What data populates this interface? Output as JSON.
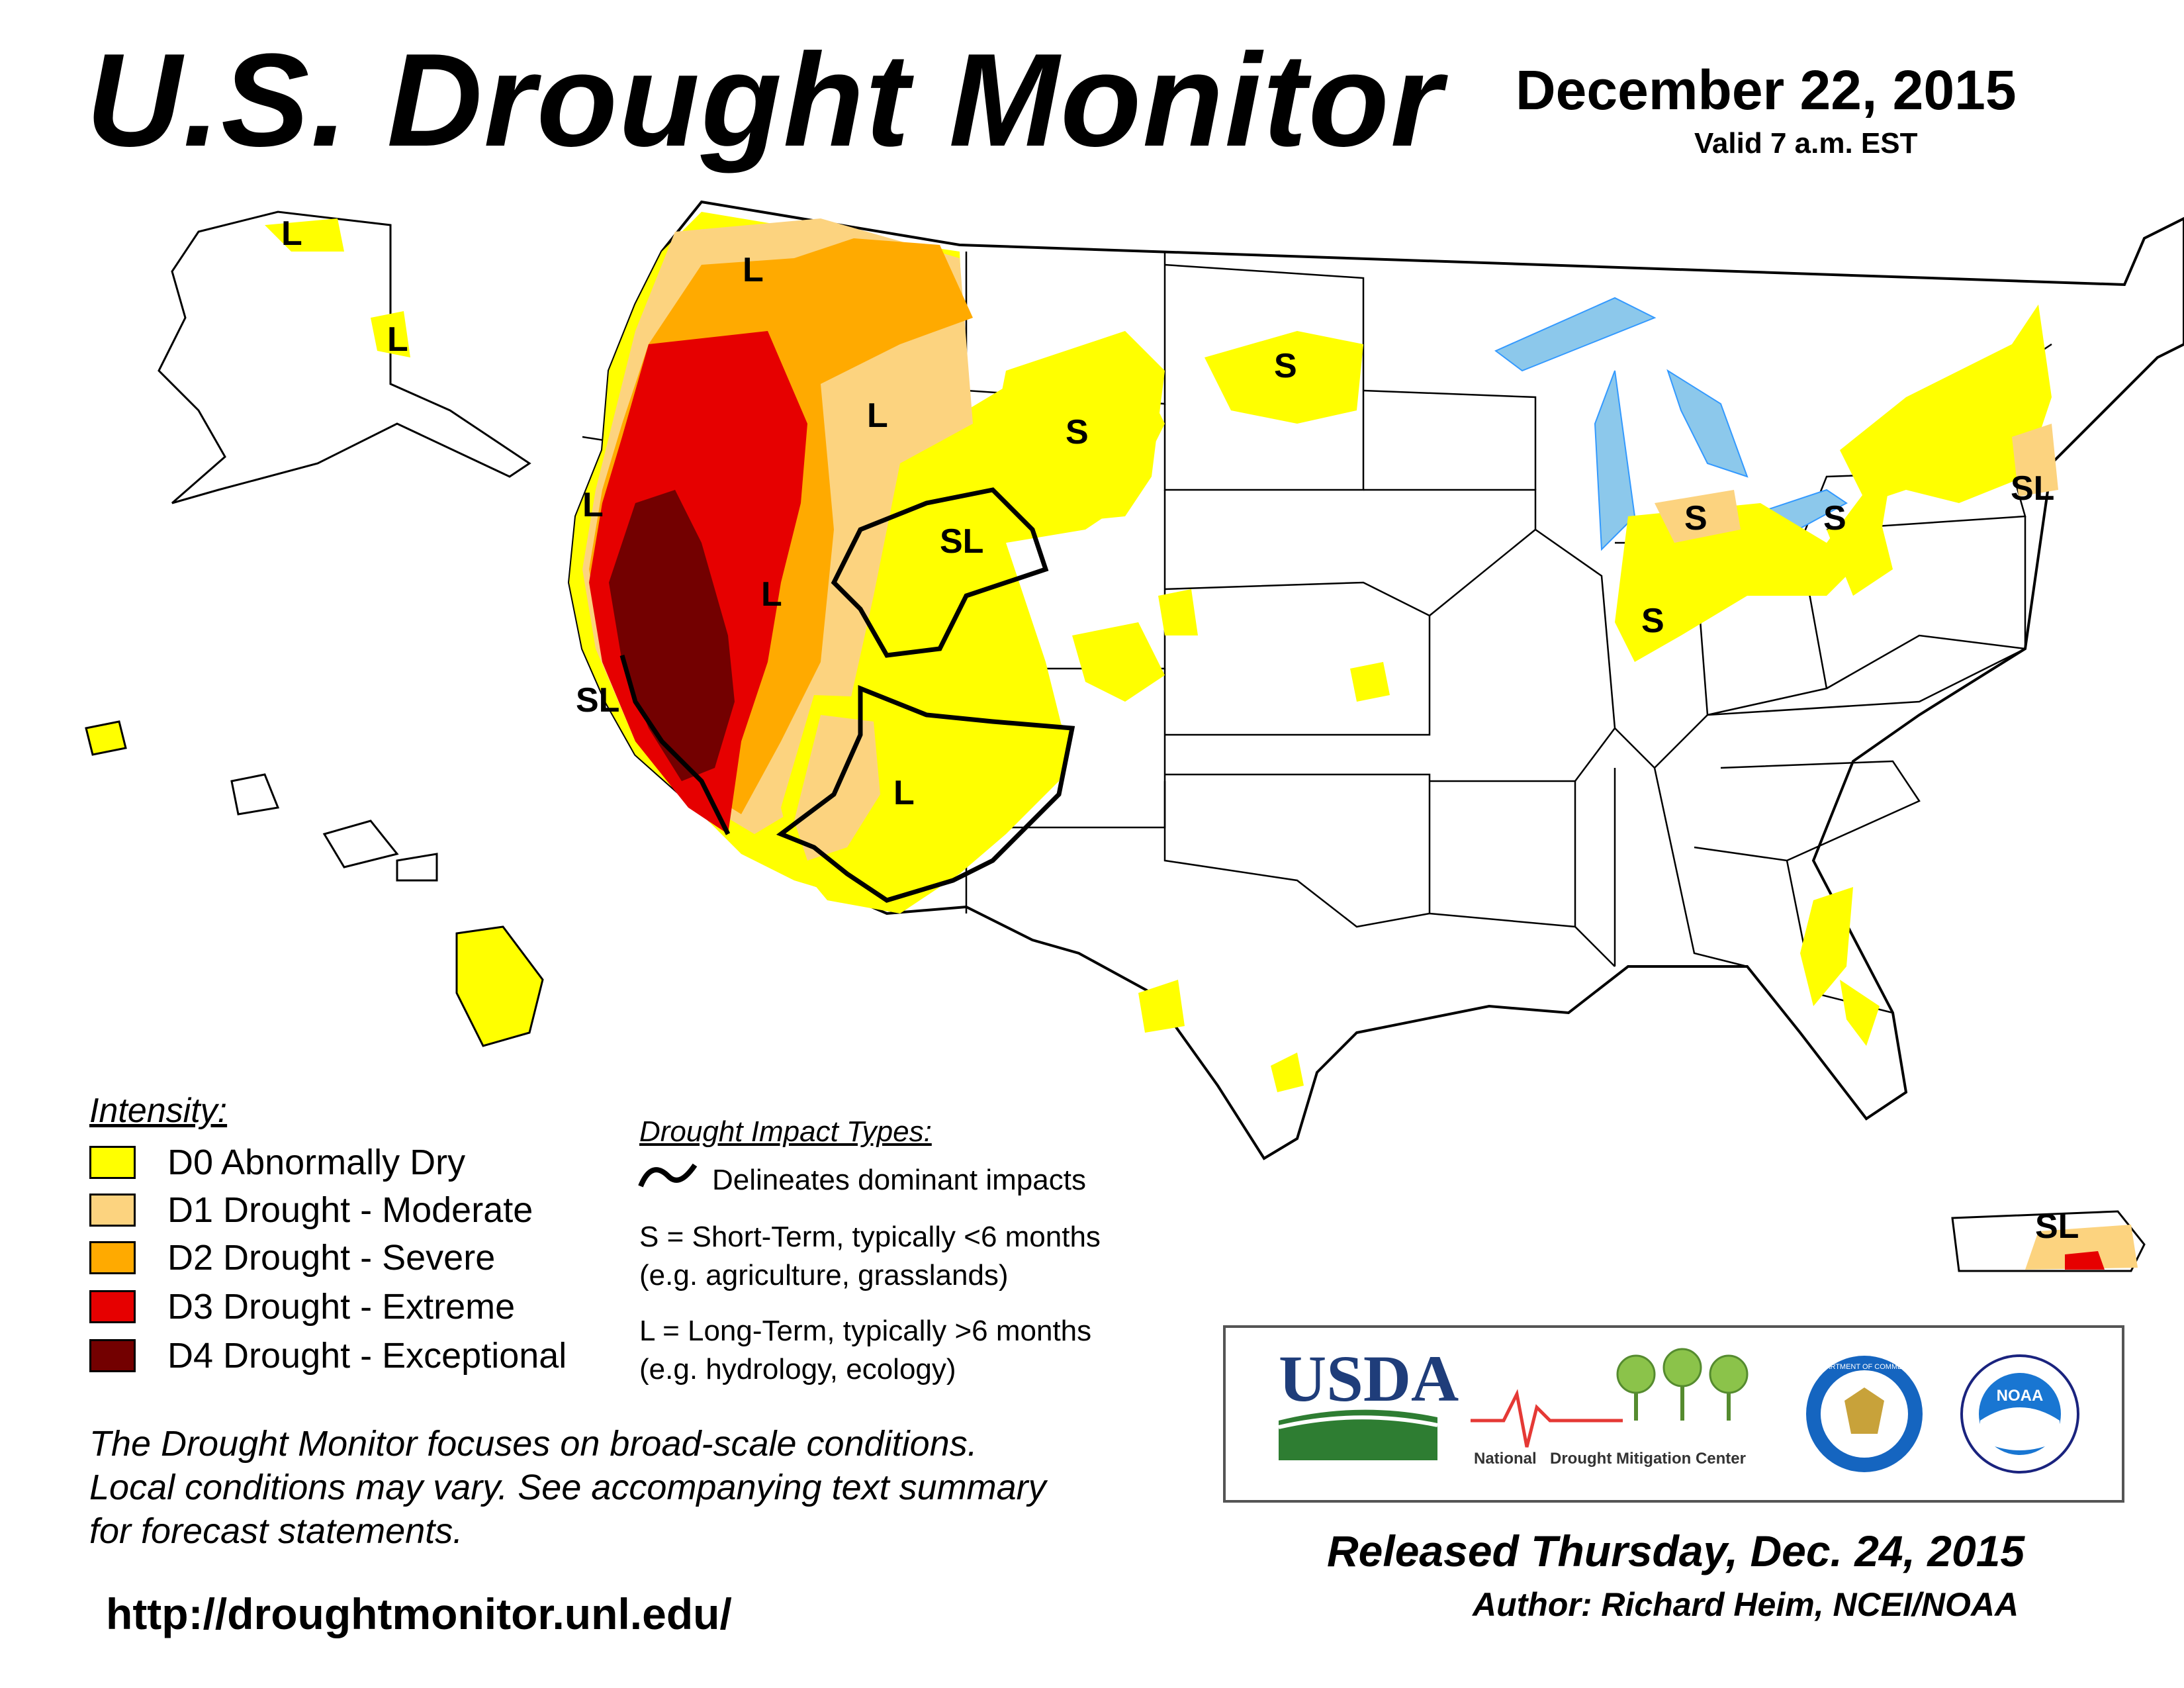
{
  "header": {
    "title": "U.S. Drought Monitor",
    "date": "December 22, 2015",
    "valid": "Valid 7 a.m. EST"
  },
  "colors": {
    "D0": "#ffff00",
    "D1": "#fcd37f",
    "D2": "#ffaa00",
    "D3": "#e60000",
    "D4": "#730000",
    "water": "#8cc8eb",
    "river": "#3399ff"
  },
  "legend": {
    "heading": "Intensity:",
    "items": [
      {
        "code": "D0",
        "label": "D0 Abnormally Dry",
        "color": "#ffff00"
      },
      {
        "code": "D1",
        "label": "D1 Drought - Moderate",
        "color": "#fcd37f"
      },
      {
        "code": "D2",
        "label": "D2 Drought - Severe",
        "color": "#ffaa00"
      },
      {
        "code": "D3",
        "label": "D3 Drought - Extreme",
        "color": "#e60000"
      },
      {
        "code": "D4",
        "label": "D4 Drought - Exceptional",
        "color": "#730000"
      }
    ]
  },
  "impacts": {
    "heading": "Drought Impact Types:",
    "delineates": "Delineates dominant impacts",
    "short_term": "S = Short-Term, typically <6 months",
    "short_term_eg": "(e.g. agriculture, grasslands)",
    "long_term": "L = Long-Term, typically >6 months",
    "long_term_eg": "(e.g. hydrology, ecology)"
  },
  "note": {
    "line1": "The Drought Monitor focuses on broad-scale conditions.",
    "line2": "Local conditions may vary. See accompanying text summary",
    "line3": "for forecast statements."
  },
  "map_labels": {
    "alaska_north": "L",
    "alaska_south": "L",
    "washington": "L",
    "idaho": "L",
    "california_north": "L",
    "nevada": "L",
    "great_basin": "SL",
    "california_south": "SL",
    "arizona": "L",
    "montana": "S",
    "north_dakota": "S",
    "michigan": "S",
    "indiana": "S",
    "new_york": "S",
    "new_england": "SL",
    "puerto_rico": "SL"
  },
  "logos": {
    "usda": "USDA",
    "ndmc_national": "National",
    "ndmc_name": "Drought Mitigation Center",
    "commerce": "DEPARTMENT OF COMMERCE",
    "noaa": "NOAA"
  },
  "footer": {
    "url": "http://droughtmonitor.unl.edu/",
    "released": "Released Thursday, Dec. 24, 2015",
    "author": "Author: Richard Heim, NCEI/NOAA"
  }
}
